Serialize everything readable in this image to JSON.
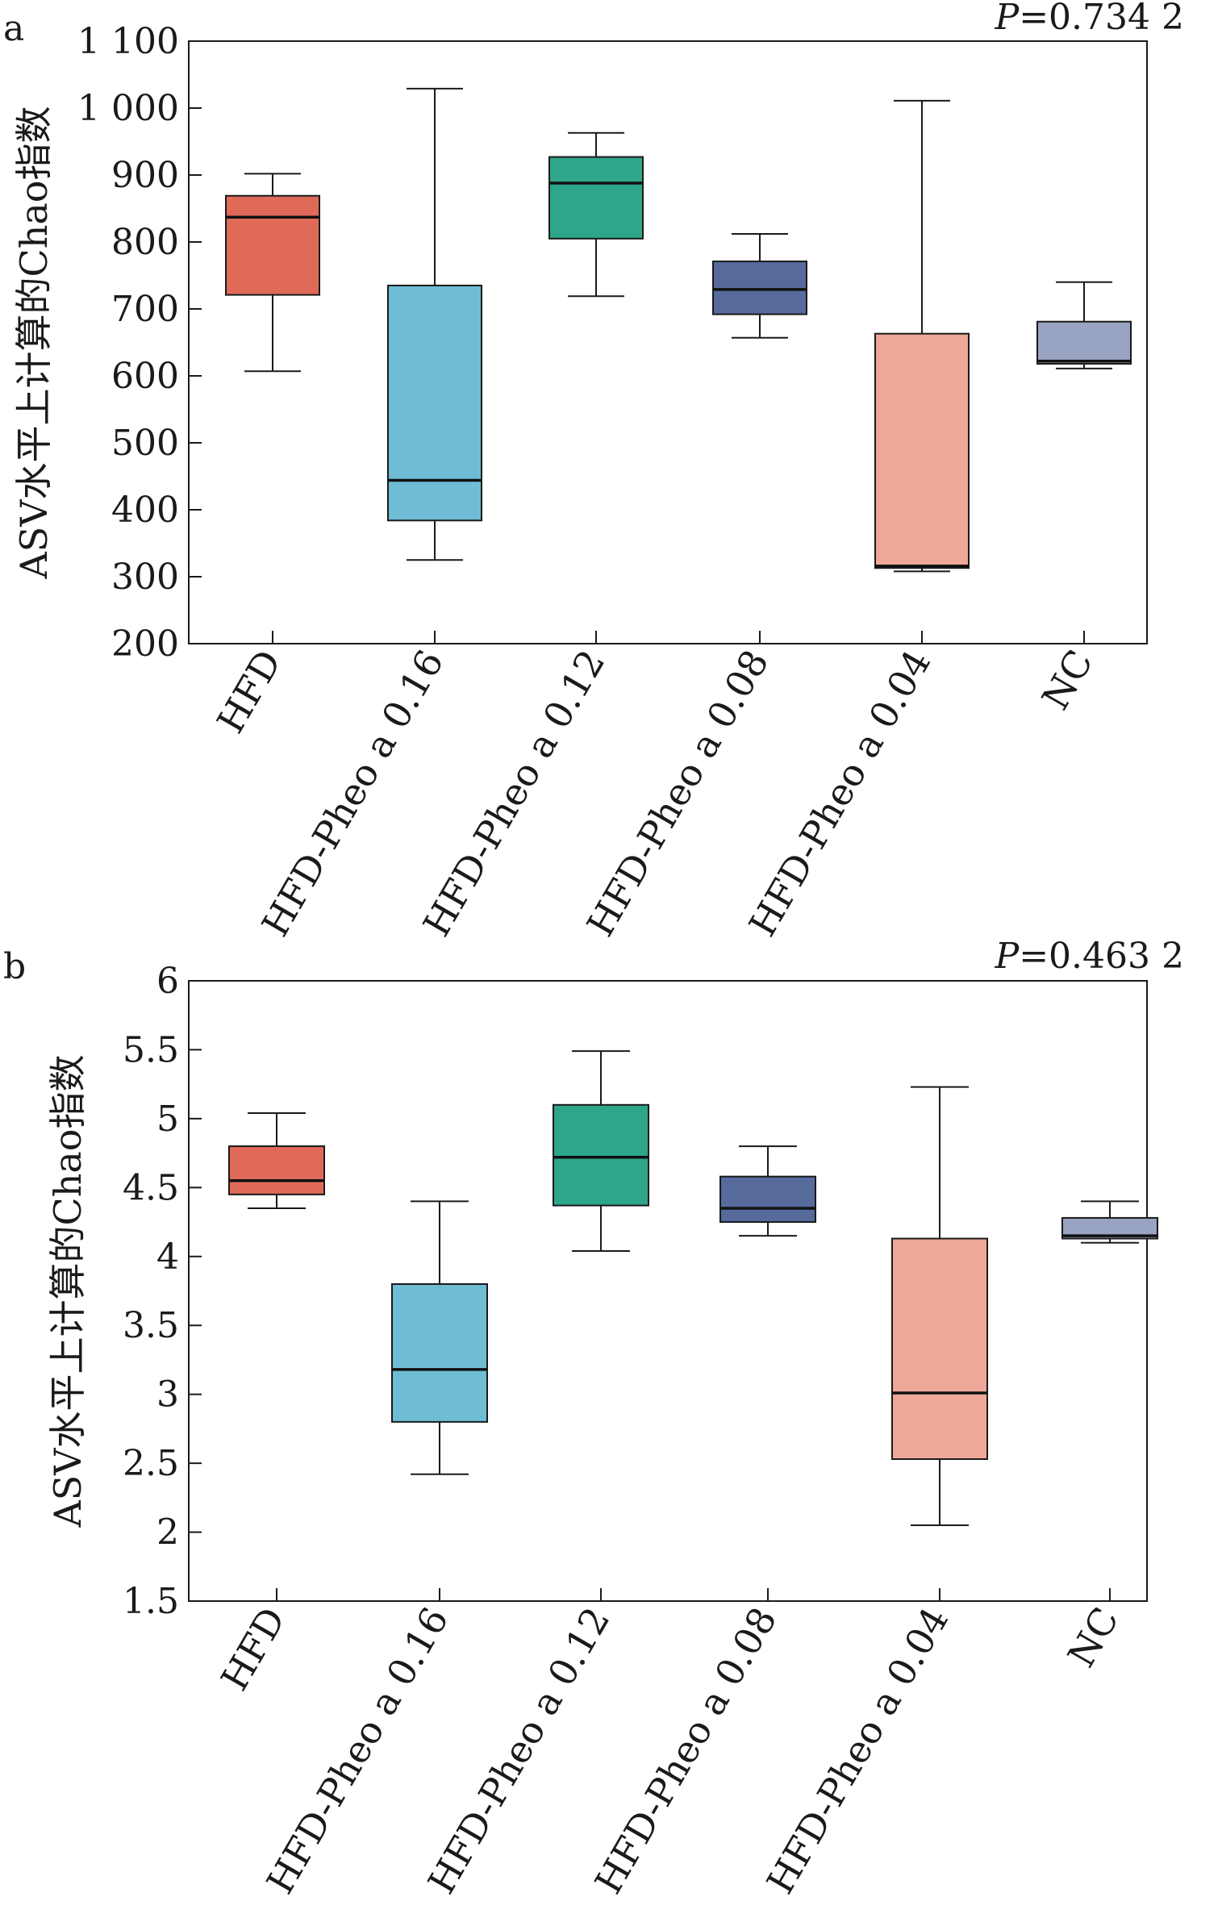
{
  "chart_data": [
    {
      "type": "box",
      "panel_label": "a",
      "p_value": {
        "prefix": "P",
        "text": "=0.734 2"
      },
      "ylabel": "ASV水平上计算的Chao指数",
      "ylim": [
        200,
        1100
      ],
      "yticks": [
        200,
        300,
        400,
        500,
        600,
        700,
        800,
        900,
        1000,
        1100
      ],
      "ytick_labels": [
        "200",
        "300",
        "400",
        "500",
        "600",
        "700",
        "800",
        "900",
        "1 000",
        "1 100"
      ],
      "grid": false,
      "categories": [
        "HFD",
        "HFD-Pheo a 0.16",
        "HFD-Pheo a 0.12",
        "HFD-Pheo a 0.08",
        "HFD-Pheo a 0.04",
        "NC"
      ],
      "colors": [
        "#e06a58",
        "#6fbdd4",
        "#2ea68a",
        "#566a9c",
        "#eda898",
        "#99a4c2"
      ],
      "boxes": [
        {
          "min": 607,
          "q1": 721,
          "median": 837,
          "q3": 869,
          "max": 902
        },
        {
          "min": 325,
          "q1": 384,
          "median": 444,
          "q3": 735,
          "max": 1029
        },
        {
          "min": 719,
          "q1": 805,
          "median": 888,
          "q3": 927,
          "max": 963
        },
        {
          "min": 657,
          "q1": 692,
          "median": 729,
          "q3": 771,
          "max": 812
        },
        {
          "min": 308,
          "q1": 313,
          "median": 316,
          "q3": 663,
          "max": 1011
        },
        {
          "min": 611,
          "q1": 618,
          "median": 622,
          "q3": 681,
          "max": 740
        }
      ]
    },
    {
      "type": "box",
      "panel_label": "b",
      "p_value": {
        "prefix": "P",
        "text": "=0.463 2"
      },
      "ylabel": "ASV水平上计算的Chao指数",
      "ylim": [
        1.5,
        6
      ],
      "yticks": [
        1.5,
        2,
        2.5,
        3,
        3.5,
        4,
        4.5,
        5,
        5.5,
        6
      ],
      "ytick_labels": [
        "1.5",
        "2",
        "2.5",
        "3",
        "3.5",
        "4",
        "4.5",
        "5",
        "5.5",
        "6"
      ],
      "grid": false,
      "categories": [
        "HFD",
        "HFD-Pheo a 0.16",
        "HFD-Pheo a 0.12",
        "HFD-Pheo a 0.08",
        "HFD-Pheo a 0.04",
        "NC"
      ],
      "colors": [
        "#e06a58",
        "#6fbdd4",
        "#2ea68a",
        "#566a9c",
        "#eda898",
        "#99a4c2"
      ],
      "boxes": [
        {
          "min": 4.35,
          "q1": 4.45,
          "median": 4.55,
          "q3": 4.8,
          "max": 5.04
        },
        {
          "min": 2.42,
          "q1": 2.8,
          "median": 3.18,
          "q3": 3.8,
          "max": 4.4
        },
        {
          "min": 4.04,
          "q1": 4.37,
          "median": 4.72,
          "q3": 5.1,
          "max": 5.49
        },
        {
          "min": 4.15,
          "q1": 4.25,
          "median": 4.35,
          "q3": 4.58,
          "max": 4.8
        },
        {
          "min": 2.05,
          "q1": 2.53,
          "median": 3.01,
          "q3": 4.13,
          "max": 5.23
        },
        {
          "min": 4.1,
          "q1": 4.13,
          "median": 4.15,
          "q3": 4.28,
          "max": 4.4
        }
      ]
    }
  ]
}
